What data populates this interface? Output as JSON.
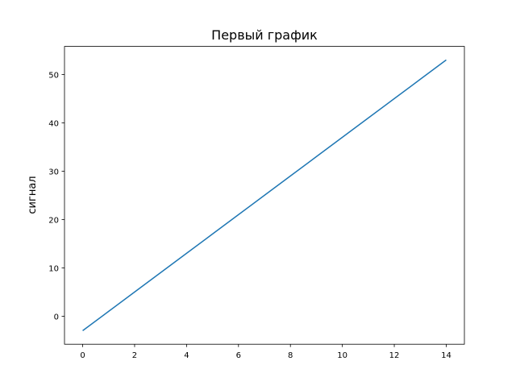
{
  "chart_data": {
    "type": "line",
    "title": "Первый график",
    "xlabel": "",
    "ylabel": "сигнал",
    "x": [
      0,
      1,
      2,
      3,
      4,
      5,
      6,
      7,
      8,
      9,
      10,
      11,
      12,
      13,
      14
    ],
    "series": [
      {
        "values": [
          -3,
          1,
          5,
          9,
          13,
          17,
          21,
          25,
          29,
          33,
          37,
          41,
          45,
          49,
          53
        ],
        "color": "#1f77b4"
      }
    ],
    "xlim": [
      -0.7,
      14.7
    ],
    "ylim": [
      -5.8,
      55.8
    ],
    "xticks": [
      0,
      2,
      4,
      6,
      8,
      10,
      12,
      14
    ],
    "yticks": [
      0,
      10,
      20,
      30,
      40,
      50
    ],
    "grid": false
  }
}
